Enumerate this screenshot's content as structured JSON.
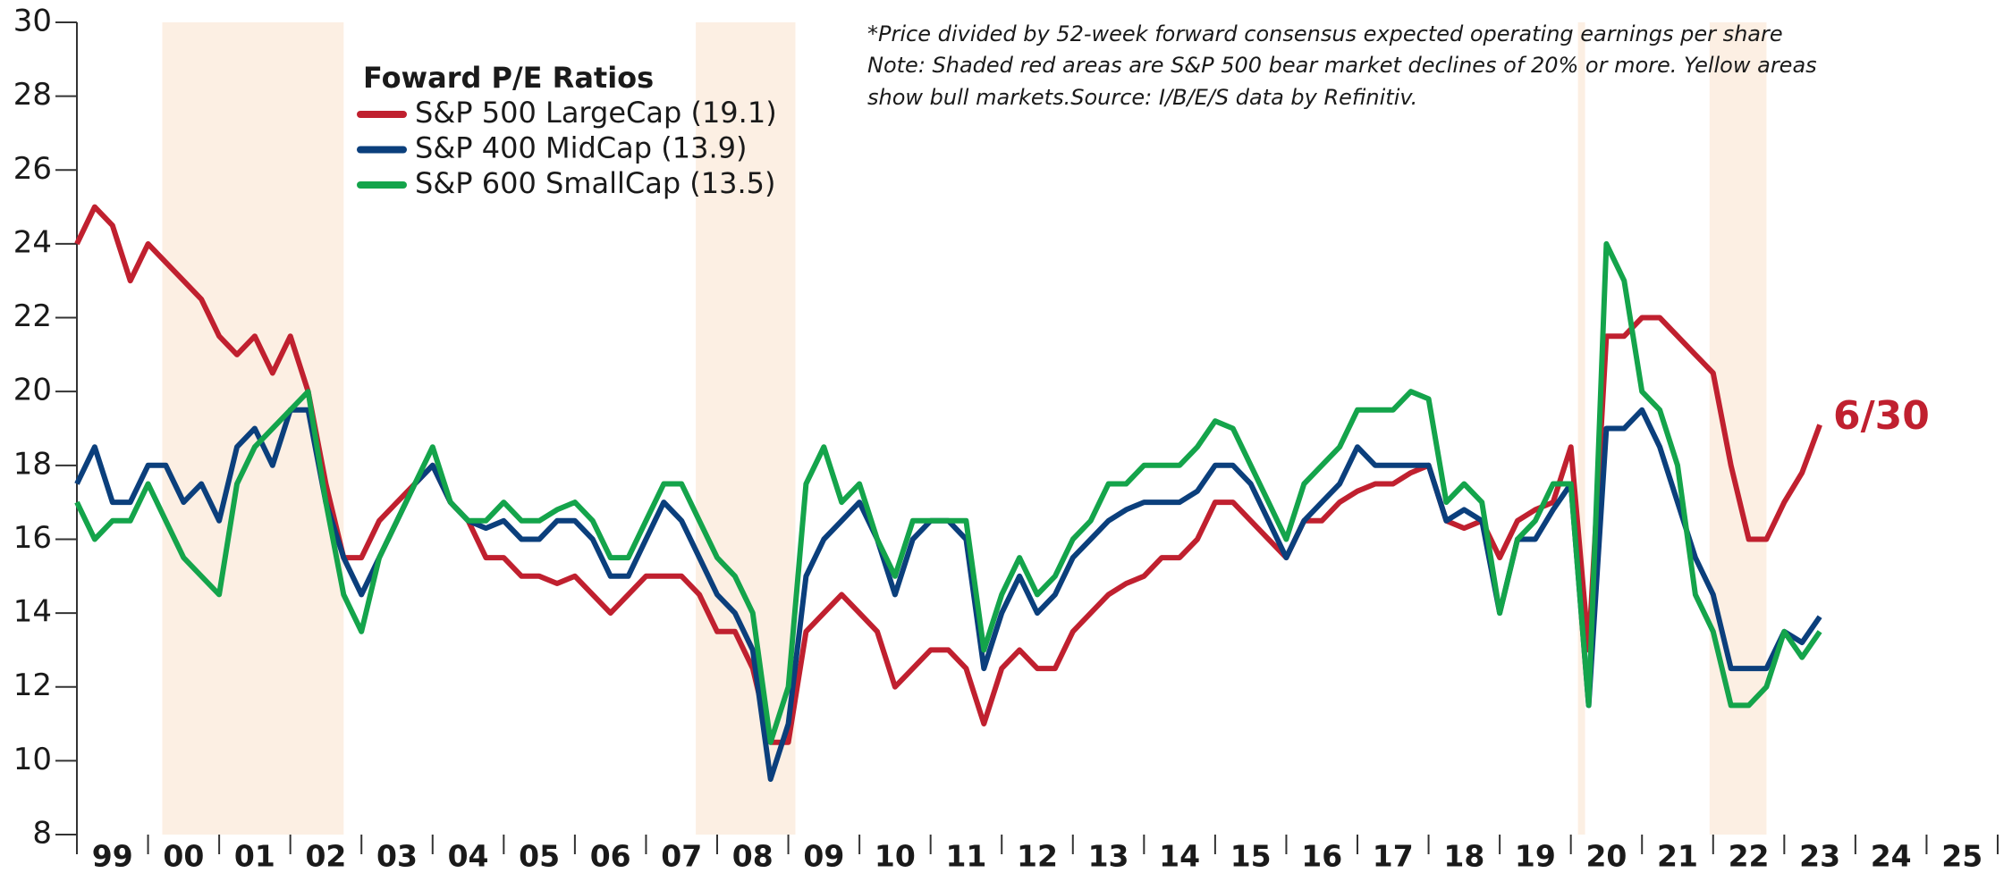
{
  "chart_data": {
    "type": "line",
    "legend_title": "Foward P/E Ratios",
    "notes": [
      "*Price divided by 52-week forward consensus expected operating earnings per share",
      "Note: Shaded red areas are S&P 500 bear market declines of 20% or more. Yellow areas",
      "show bull markets.Source: I/B/E/S data by Refinitiv."
    ],
    "annotation": {
      "text": "6/30",
      "color": "#c0202f"
    },
    "categories": [
      "99",
      "00",
      "01",
      "02",
      "03",
      "04",
      "05",
      "06",
      "07",
      "08",
      "09",
      "10",
      "11",
      "12",
      "13",
      "14",
      "15",
      "16",
      "17",
      "18",
      "19",
      "20",
      "21",
      "22",
      "23",
      "24",
      "25"
    ],
    "xlim": [
      1999,
      2026
    ],
    "xticks": [
      1999,
      2000,
      2001,
      2002,
      2003,
      2004,
      2005,
      2006,
      2007,
      2008,
      2009,
      2010,
      2011,
      2012,
      2013,
      2014,
      2015,
      2016,
      2017,
      2018,
      2019,
      2020,
      2021,
      2022,
      2023,
      2024,
      2025,
      2026
    ],
    "ylim": [
      8,
      30
    ],
    "yticks": [
      8,
      10,
      12,
      14,
      16,
      18,
      20,
      22,
      24,
      26,
      28,
      30
    ],
    "grid": false,
    "shaded_regions": {
      "color": "#fcefe3",
      "ranges": [
        [
          2000.2,
          2002.75
        ],
        [
          2007.7,
          2009.1
        ],
        [
          2020.1,
          2020.2
        ],
        [
          2021.95,
          2022.75
        ]
      ]
    },
    "x": [
      1999,
      1999.25,
      1999.5,
      1999.75,
      2000,
      2000.25,
      2000.5,
      2000.75,
      2001,
      2001.25,
      2001.5,
      2001.75,
      2002,
      2002.25,
      2002.5,
      2002.75,
      2003,
      2003.25,
      2003.5,
      2003.75,
      2004,
      2004.25,
      2004.5,
      2004.75,
      2005,
      2005.25,
      2005.5,
      2005.75,
      2006,
      2006.25,
      2006.5,
      2006.75,
      2007,
      2007.25,
      2007.5,
      2007.75,
      2008,
      2008.25,
      2008.5,
      2008.75,
      2009,
      2009.25,
      2009.5,
      2009.75,
      2010,
      2010.25,
      2010.5,
      2010.75,
      2011,
      2011.25,
      2011.5,
      2011.75,
      2012,
      2012.25,
      2012.5,
      2012.75,
      2013,
      2013.25,
      2013.5,
      2013.75,
      2014,
      2014.25,
      2014.5,
      2014.75,
      2015,
      2015.25,
      2015.5,
      2015.75,
      2016,
      2016.25,
      2016.5,
      2016.75,
      2017,
      2017.25,
      2017.5,
      2017.75,
      2018,
      2018.25,
      2018.5,
      2018.75,
      2019,
      2019.25,
      2019.5,
      2019.75,
      2020,
      2020.25,
      2020.5,
      2020.75,
      2021,
      2021.25,
      2021.5,
      2021.75,
      2022,
      2022.25,
      2022.5,
      2022.75,
      2023,
      2023.25,
      2023.5
    ],
    "series": [
      {
        "name": "S&P 500 LargeCap (19.1)",
        "color": "#c0202f",
        "values": [
          24,
          25,
          24.5,
          23,
          24,
          23.5,
          23,
          22.5,
          21.5,
          21,
          21.5,
          20.5,
          21.5,
          20,
          17.5,
          15.5,
          15.5,
          16.5,
          17,
          17.5,
          18,
          17,
          16.5,
          15.5,
          15.5,
          15,
          15,
          14.8,
          15,
          14.5,
          14,
          14.5,
          15,
          15,
          15,
          14.5,
          13.5,
          13.5,
          12.5,
          10.5,
          10.5,
          13.5,
          14,
          14.5,
          14,
          13.5,
          12,
          12.5,
          13,
          13,
          12.5,
          11,
          12.5,
          13,
          12.5,
          12.5,
          13.5,
          14,
          14.5,
          14.8,
          15,
          15.5,
          15.5,
          16,
          17,
          17,
          16.5,
          16,
          15.5,
          16.5,
          16.5,
          17,
          17.3,
          17.5,
          17.5,
          17.8,
          18,
          16.5,
          16.3,
          16.5,
          15.5,
          16.5,
          16.8,
          17,
          18.5,
          13,
          21.5,
          21.5,
          22,
          22,
          21.5,
          21,
          20.5,
          18,
          16,
          16,
          17,
          17.8,
          19.1
        ]
      },
      {
        "name": "S&P 400 MidCap (13.9)",
        "color": "#0b3f7c",
        "values": [
          17.5,
          18.5,
          17,
          17,
          18,
          18,
          17,
          17.5,
          16.5,
          18.5,
          19,
          18,
          19.5,
          19.5,
          17,
          15.5,
          14.5,
          15.5,
          16.5,
          17.5,
          18,
          17,
          16.5,
          16.3,
          16.5,
          16,
          16,
          16.5,
          16.5,
          16,
          15,
          15,
          16,
          17,
          16.5,
          15.5,
          14.5,
          14,
          13,
          9.5,
          11,
          15,
          16,
          16.5,
          17,
          16,
          14.5,
          16,
          16.5,
          16.5,
          16,
          12.5,
          14,
          15,
          14,
          14.5,
          15.5,
          16,
          16.5,
          16.8,
          17,
          17,
          17,
          17.3,
          18,
          18,
          17.5,
          16.5,
          15.5,
          16.5,
          17,
          17.5,
          18.5,
          18,
          18,
          18,
          18,
          16.5,
          16.8,
          16.5,
          14,
          16,
          16,
          16.8,
          17.5,
          11.5,
          19,
          19,
          19.5,
          18.5,
          17,
          15.5,
          14.5,
          12.5,
          12.5,
          12.5,
          13.5,
          13.2,
          13.9
        ]
      },
      {
        "name": "S&P 600 SmallCap (13.5)",
        "color": "#14a44b",
        "values": [
          17,
          16,
          16.5,
          16.5,
          17.5,
          16.5,
          15.5,
          15,
          14.5,
          17.5,
          18.5,
          19,
          19.5,
          20,
          17,
          14.5,
          13.5,
          15.5,
          16.5,
          17.5,
          18.5,
          17,
          16.5,
          16.5,
          17,
          16.5,
          16.5,
          16.8,
          17,
          16.5,
          15.5,
          15.5,
          16.5,
          17.5,
          17.5,
          16.5,
          15.5,
          15,
          14,
          10.5,
          12,
          17.5,
          18.5,
          17,
          17.5,
          16,
          15,
          16.5,
          16.5,
          16.5,
          16.5,
          13,
          14.5,
          15.5,
          14.5,
          15,
          16,
          16.5,
          17.5,
          17.5,
          18,
          18,
          18,
          18.5,
          19.2,
          19,
          18,
          17,
          16,
          17.5,
          18,
          18.5,
          19.5,
          19.5,
          19.5,
          20,
          19.8,
          17,
          17.5,
          17,
          14,
          16,
          16.5,
          17.5,
          17.5,
          11.5,
          24,
          23,
          20,
          19.5,
          18,
          14.5,
          13.5,
          11.5,
          11.5,
          12,
          13.5,
          12.8,
          13.5
        ]
      }
    ]
  }
}
